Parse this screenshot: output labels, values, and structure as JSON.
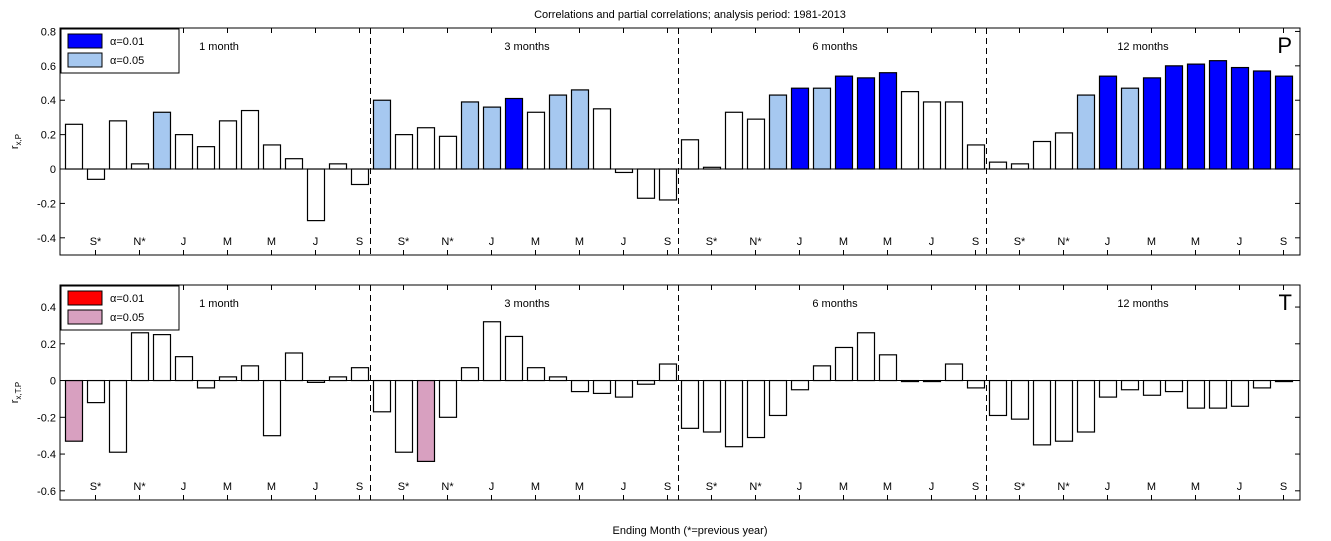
{
  "figure_title": "Correlations and partial correlations; analysis period: 1981-2013",
  "xlabel": "Ending Month (*=previous year)",
  "colors": {
    "p_sig01": "#0000ff",
    "p_sig05": "#a6c8f0",
    "t_sig01": "#ff0000",
    "t_sig05": "#d8a0c0",
    "nonsig": "#ffffff",
    "bar_edge": "#000000"
  },
  "chart_data": [
    {
      "type": "bar",
      "panel_letter": "P",
      "ylabel_main": "r",
      "ylabel_sub": "x,P",
      "ylim": [
        -0.5,
        0.82
      ],
      "yticks": [
        -0.4,
        -0.2,
        0,
        0.2,
        0.4,
        0.6,
        0.8
      ],
      "ytick_labels": [
        "-0.4",
        "-0.2",
        "0",
        "0.2",
        "0.4",
        "0.6",
        "0.8"
      ],
      "grid": false,
      "legend": {
        "position": "top-left",
        "entries": [
          {
            "label": "α=0.01",
            "level": "sig01"
          },
          {
            "label": "α=0.05",
            "level": "sig05"
          }
        ]
      },
      "groups": [
        {
          "label": "1 month",
          "values": [
            0.26,
            -0.06,
            0.28,
            0.03,
            0.33,
            0.2,
            0.13,
            0.28,
            0.34,
            0.14,
            0.06,
            -0.3,
            0.03,
            -0.09
          ],
          "significance": [
            "",
            "",
            "",
            "",
            "sig05",
            "",
            "",
            "",
            "",
            "",
            "",
            "",
            "",
            ""
          ]
        },
        {
          "label": "3 months",
          "values": [
            0.4,
            0.2,
            0.24,
            0.19,
            0.39,
            0.36,
            0.41,
            0.33,
            0.43,
            0.46,
            0.35,
            -0.02,
            -0.17,
            -0.18
          ],
          "significance": [
            "sig05",
            "",
            "",
            "",
            "sig05",
            "sig05",
            "sig01",
            "",
            "sig05",
            "sig05",
            "",
            "",
            "",
            ""
          ]
        },
        {
          "label": "6 months",
          "values": [
            0.17,
            0.01,
            0.33,
            0.29,
            0.43,
            0.47,
            0.47,
            0.54,
            0.53,
            0.56,
            0.45,
            0.39,
            0.39,
            0.14
          ],
          "significance": [
            "",
            "",
            "",
            "",
            "sig05",
            "sig01",
            "sig05",
            "sig01",
            "sig01",
            "sig01",
            "",
            "",
            "",
            ""
          ]
        },
        {
          "label": "12 months",
          "values": [
            0.04,
            0.03,
            0.16,
            0.21,
            0.43,
            0.54,
            0.47,
            0.53,
            0.6,
            0.61,
            0.63,
            0.59,
            0.57,
            0.54
          ],
          "significance": [
            "",
            "",
            "",
            "",
            "sig05",
            "sig01",
            "sig05",
            "sig01",
            "sig01",
            "sig01",
            "sig01",
            "sig01",
            "sig01",
            "sig01"
          ]
        }
      ],
      "xtick_labels": [
        "S*",
        "N*",
        "J",
        "M",
        "M",
        "J",
        "S"
      ]
    },
    {
      "type": "bar",
      "panel_letter": "T",
      "ylabel_main": "r",
      "ylabel_sub": "x,T.P",
      "ylim": [
        -0.65,
        0.52
      ],
      "yticks": [
        -0.6,
        -0.4,
        -0.2,
        0,
        0.2,
        0.4
      ],
      "ytick_labels": [
        "-0.6",
        "-0.4",
        "-0.2",
        "0",
        "0.2",
        "0.4"
      ],
      "grid": false,
      "legend": {
        "position": "top-left",
        "entries": [
          {
            "label": "α=0.01",
            "level": "sig01"
          },
          {
            "label": "α=0.05",
            "level": "sig05"
          }
        ]
      },
      "groups": [
        {
          "label": "1 month",
          "values": [
            -0.33,
            -0.12,
            -0.39,
            0.26,
            0.25,
            0.13,
            -0.04,
            0.02,
            0.08,
            -0.3,
            0.15,
            -0.01,
            0.02,
            0.07
          ],
          "significance": [
            "sig05",
            "",
            "",
            "",
            "",
            "",
            "",
            "",
            "",
            "",
            "",
            "",
            "",
            ""
          ]
        },
        {
          "label": "3 months",
          "values": [
            -0.17,
            -0.39,
            -0.44,
            -0.2,
            0.07,
            0.32,
            0.24,
            0.07,
            0.02,
            -0.06,
            -0.07,
            -0.09,
            -0.02,
            0.09
          ],
          "significance": [
            "",
            "",
            "sig05",
            "",
            "",
            "",
            "",
            "",
            "",
            "",
            "",
            "",
            "",
            ""
          ]
        },
        {
          "label": "6 months",
          "values": [
            -0.26,
            -0.28,
            -0.36,
            -0.31,
            -0.19,
            -0.05,
            0.08,
            0.18,
            0.26,
            0.14,
            0.0,
            0.0,
            0.09,
            -0.04
          ],
          "significance": [
            "",
            "",
            "",
            "",
            "",
            "",
            "",
            "",
            "",
            "",
            "",
            "",
            "",
            ""
          ]
        },
        {
          "label": "12 months",
          "values": [
            -0.19,
            -0.21,
            -0.35,
            -0.33,
            -0.28,
            -0.09,
            -0.05,
            -0.08,
            -0.06,
            -0.15,
            -0.15,
            -0.14,
            -0.04,
            0.0
          ],
          "significance": [
            "",
            "",
            "",
            "",
            "",
            "",
            "",
            "",
            "",
            "",
            "",
            "",
            "",
            ""
          ]
        }
      ],
      "xtick_labels": [
        "S*",
        "N*",
        "J",
        "M",
        "M",
        "J",
        "S"
      ]
    }
  ]
}
